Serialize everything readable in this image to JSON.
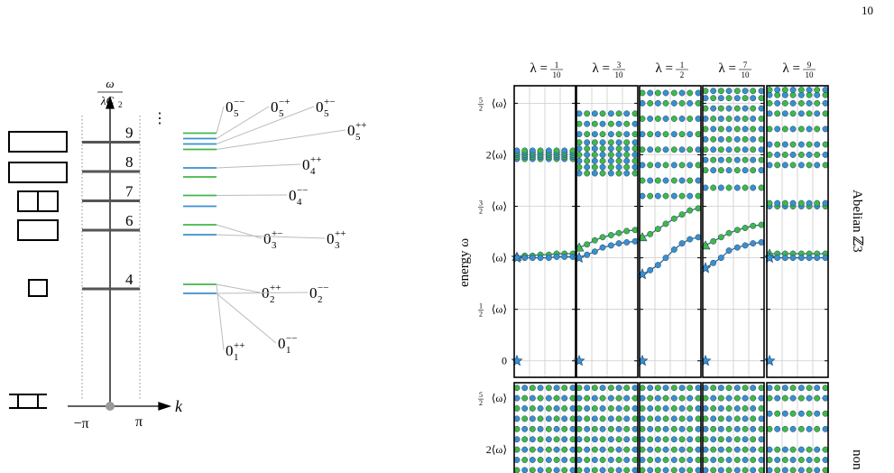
{
  "page_number": "10",
  "left": {
    "axis_num": "ω",
    "axis_den": "λC",
    "axis_den_sub": "2",
    "x_label": "k",
    "x_ticks": [
      "−π",
      "π"
    ],
    "dots": "⋮",
    "levels": [
      {
        "label": "9",
        "value": 9,
        "states": [
          {
            "base": "0",
            "sub": "5",
            "sup": "−−"
          },
          {
            "base": "0",
            "sub": "5",
            "sup": "−+"
          },
          {
            "base": "0",
            "sub": "5",
            "sup": "+−"
          },
          {
            "base": "0",
            "sub": "5",
            "sup": "++"
          }
        ]
      },
      {
        "label": "8",
        "value": 8,
        "states": [
          {
            "base": "0",
            "sub": "4",
            "sup": "++"
          }
        ]
      },
      {
        "label": "7",
        "value": 7,
        "states": [
          {
            "base": "0",
            "sub": "4",
            "sup": "−−"
          }
        ]
      },
      {
        "label": "6",
        "value": 6,
        "states": [
          {
            "base": "0",
            "sub": "3",
            "sup": "+−"
          },
          {
            "base": "0",
            "sub": "3",
            "sup": "++"
          }
        ]
      },
      {
        "label": "4",
        "value": 4,
        "states": [
          {
            "base": "0",
            "sub": "2",
            "sup": "++"
          },
          {
            "base": "0",
            "sub": "2",
            "sup": "−−"
          },
          {
            "base": "0",
            "sub": "1",
            "sup": "++"
          },
          {
            "base": "0",
            "sub": "1",
            "sup": "−−"
          }
        ]
      }
    ]
  },
  "right": {
    "lambda_prefix": "λ =",
    "lambdas": [
      {
        "num": "1",
        "den": "10"
      },
      {
        "num": "3",
        "den": "10"
      },
      {
        "num": "1",
        "den": "2"
      },
      {
        "num": "7",
        "den": "10"
      },
      {
        "num": "9",
        "den": "10"
      }
    ],
    "y_label": "energy ω",
    "row_labels": [
      "Abelian ℤ3",
      "non"
    ],
    "ylim": [
      -0.16,
      2.67
    ],
    "ylim_lower": [
      1.6,
      2.65
    ],
    "yticks": [
      {
        "value": 2.5,
        "label": "⟨ω⟩",
        "num": "5",
        "den": "2"
      },
      {
        "value": 2,
        "label": "2⟨ω⟩"
      },
      {
        "value": 1.5,
        "label": "⟨ω⟩",
        "num": "3",
        "den": "2"
      },
      {
        "value": 1,
        "label": "⟨ω⟩"
      },
      {
        "value": 0.5,
        "label": "⟨ω⟩",
        "num": "1",
        "den": "2"
      },
      0
    ],
    "x": [
      0,
      0.14,
      0.28,
      0.42,
      0.57,
      0.71,
      0.85,
      1
    ],
    "panels": [
      {
        "blue": [
          1.0,
          1.0,
          1.0,
          1.0,
          1.0,
          1.01,
          1.01,
          1.01
        ],
        "green": [
          1.01,
          1.02,
          1.02,
          1.03,
          1.03,
          1.04,
          1.04,
          1.04
        ],
        "upper": [
          1.96,
          1.98,
          2.0,
          2.02,
          2.04
        ],
        "lower_row": [
          1.7,
          1.8,
          1.9,
          2.0,
          2.1,
          2.2,
          2.3,
          2.4,
          2.5,
          2.6
        ]
      },
      {
        "blue": [
          1.0,
          1.03,
          1.06,
          1.1,
          1.12,
          1.14,
          1.15,
          1.16
        ],
        "green": [
          1.1,
          1.13,
          1.17,
          1.2,
          1.22,
          1.24,
          1.26,
          1.27
        ],
        "upper": [
          1.82,
          1.88,
          1.94,
          2.0,
          2.06,
          2.12,
          2.2,
          2.3,
          2.4
        ],
        "lower_row": [
          1.7,
          1.8,
          1.9,
          2.0,
          2.1,
          2.2,
          2.3,
          2.4,
          2.5,
          2.6
        ]
      },
      {
        "blue": [
          0.84,
          0.88,
          0.93,
          1.0,
          1.08,
          1.14,
          1.18,
          1.2
        ],
        "green": [
          1.2,
          1.23,
          1.28,
          1.33,
          1.38,
          1.42,
          1.46,
          1.48
        ],
        "upper": [
          1.6,
          1.75,
          1.9,
          2.05,
          2.2,
          2.35,
          2.5,
          2.6
        ],
        "lower_row": [
          1.7,
          1.8,
          1.9,
          2.0,
          2.1,
          2.2,
          2.3,
          2.4,
          2.5,
          2.6
        ]
      },
      {
        "blue": [
          0.9,
          0.95,
          1.0,
          1.07,
          1.1,
          1.12,
          1.14,
          1.15
        ],
        "green": [
          1.12,
          1.16,
          1.2,
          1.24,
          1.27,
          1.29,
          1.31,
          1.32
        ],
        "upper": [
          1.68,
          1.85,
          1.95,
          2.05,
          2.15,
          2.25,
          2.35,
          2.45,
          2.55,
          2.62
        ],
        "lower_row": [
          1.8,
          1.9,
          2.0,
          2.1,
          2.2,
          2.3,
          2.4,
          2.5,
          2.6
        ]
      },
      {
        "blue": [
          1.0,
          1.0,
          1.0,
          1.0,
          1.0,
          1.0,
          1.0,
          1.0
        ],
        "green": [
          1.04,
          1.04,
          1.04,
          1.04,
          1.04,
          1.04,
          1.04,
          1.04
        ],
        "upper": [
          1.5,
          1.53,
          1.9,
          2.0,
          2.1,
          2.25,
          2.4,
          2.5,
          2.58,
          2.63
        ],
        "lower_row": [
          1.8,
          1.9,
          2.0,
          2.2,
          2.35,
          2.5,
          2.6
        ]
      }
    ]
  }
}
